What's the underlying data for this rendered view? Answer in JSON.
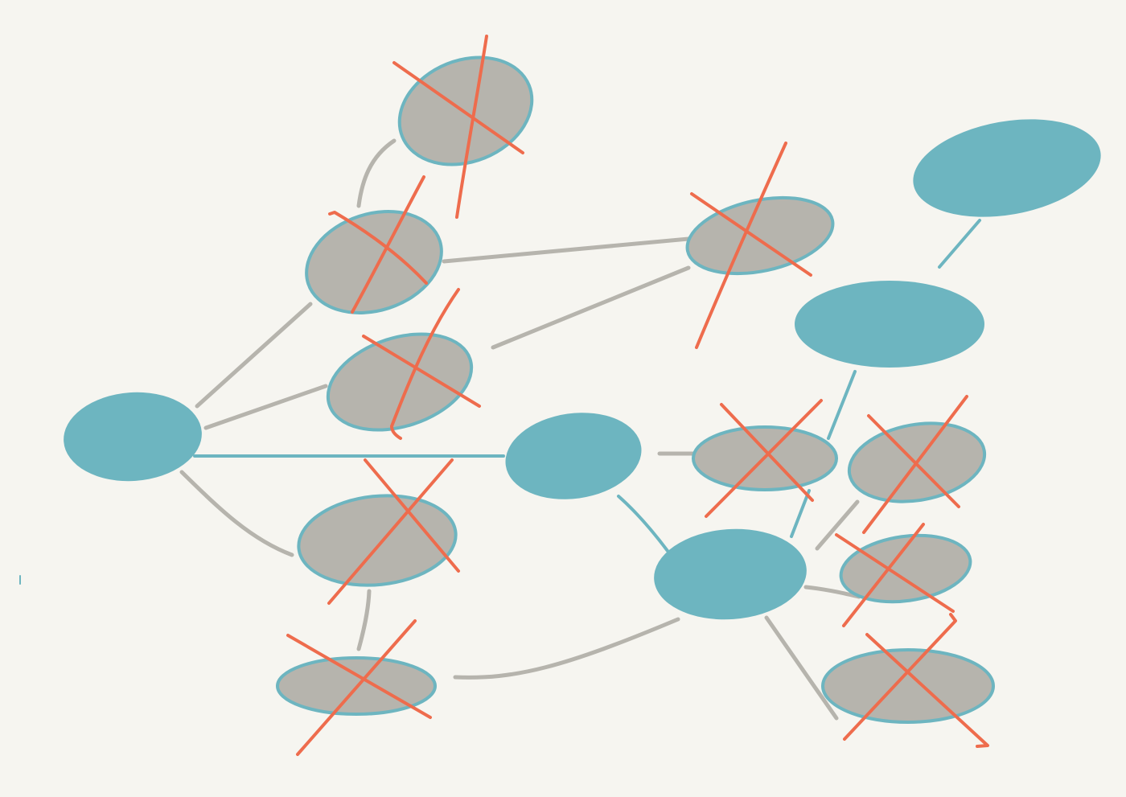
{
  "diagram": {
    "kind": "node-link graph sketch",
    "colors": {
      "background": "#f6f5f0",
      "active_node": "#6db5c0",
      "removed_node": "#b6b4ad",
      "node_outline": "#6db5c0",
      "gray_edge": "#b6b4ad",
      "teal_edge": "#6db5c0",
      "cross_mark": "#ee6c4d"
    },
    "nodes": [
      {
        "id": "root",
        "state": "active"
      },
      {
        "id": "top",
        "state": "removed"
      },
      {
        "id": "upper-left",
        "state": "removed"
      },
      {
        "id": "middle-left",
        "state": "removed"
      },
      {
        "id": "lower-left",
        "state": "removed"
      },
      {
        "id": "bottom-left",
        "state": "removed"
      },
      {
        "id": "upper-middle",
        "state": "removed"
      },
      {
        "id": "center",
        "state": "active"
      },
      {
        "id": "center-right",
        "state": "removed"
      },
      {
        "id": "lower-center",
        "state": "active"
      },
      {
        "id": "right-large",
        "state": "active"
      },
      {
        "id": "top-right",
        "state": "active"
      },
      {
        "id": "right-a",
        "state": "removed"
      },
      {
        "id": "right-b",
        "state": "removed"
      },
      {
        "id": "bottom-right",
        "state": "removed"
      }
    ],
    "edges": [
      {
        "from": "upper-left",
        "to": "top",
        "style": "gray"
      },
      {
        "from": "root",
        "to": "upper-left",
        "style": "gray"
      },
      {
        "from": "root",
        "to": "middle-left",
        "style": "gray"
      },
      {
        "from": "root",
        "to": "lower-left",
        "style": "gray"
      },
      {
        "from": "root",
        "to": "center",
        "style": "teal"
      },
      {
        "from": "upper-left",
        "to": "upper-middle",
        "style": "gray"
      },
      {
        "from": "middle-left",
        "to": "upper-middle",
        "style": "gray"
      },
      {
        "from": "lower-left",
        "to": "bottom-left",
        "style": "gray"
      },
      {
        "from": "bottom-left",
        "to": "lower-center",
        "style": "gray"
      },
      {
        "from": "center",
        "to": "center-right",
        "style": "gray"
      },
      {
        "from": "center",
        "to": "lower-center",
        "style": "teal"
      },
      {
        "from": "lower-center",
        "to": "right-large",
        "style": "teal"
      },
      {
        "from": "right-large",
        "to": "top-right",
        "style": "teal"
      },
      {
        "from": "lower-center",
        "to": "right-a",
        "style": "gray"
      },
      {
        "from": "lower-center",
        "to": "right-b",
        "style": "gray"
      },
      {
        "from": "lower-center",
        "to": "bottom-right",
        "style": "gray"
      }
    ]
  }
}
